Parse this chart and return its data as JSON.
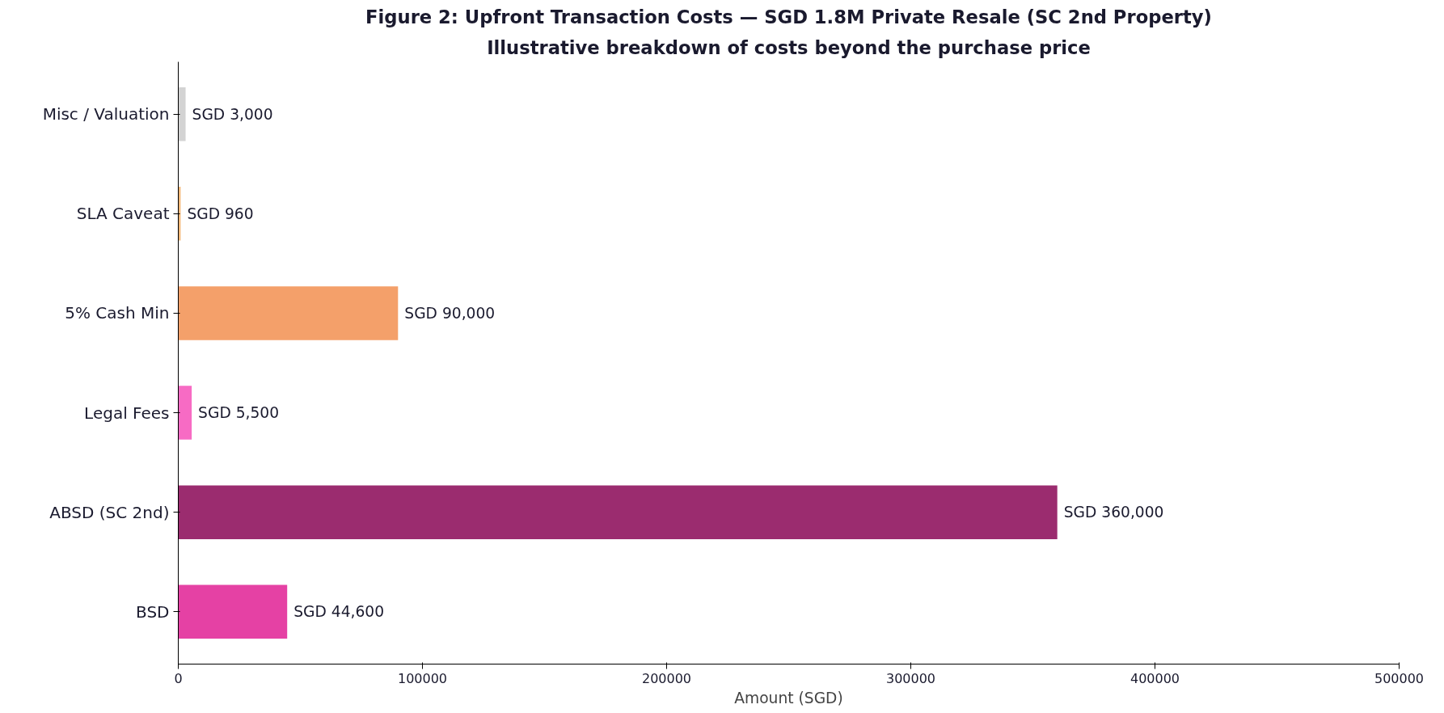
{
  "chart_data": {
    "type": "bar",
    "orientation": "horizontal",
    "title": "Figure 2: Upfront Transaction Costs — SGD 1.8M Private Resale (SC 2nd Property)",
    "subtitle": "Illustrative breakdown of costs beyond the purchase price",
    "xlabel": "Amount (SGD)",
    "categories": [
      "Misc / Valuation",
      "SLA Caveat",
      "5% Cash Min",
      "Legal Fees",
      "ABSD (SC 2nd)",
      "BSD"
    ],
    "values": [
      3000,
      960,
      90000,
      5500,
      360000,
      44600
    ],
    "colors": [
      "#d3d3d3",
      "#f4b97a",
      "#f4a06a",
      "#f76bc4",
      "#9b2c6f",
      "#e541a4"
    ],
    "value_labels": [
      "SGD 3,000",
      "SGD 960",
      "SGD 90,000",
      "SGD 5,500",
      "SGD 360,000",
      "SGD 44,600"
    ],
    "xlim": [
      0,
      500000
    ],
    "xticks": [
      0,
      100000,
      200000,
      300000,
      400000,
      500000
    ],
    "grid": false
  }
}
